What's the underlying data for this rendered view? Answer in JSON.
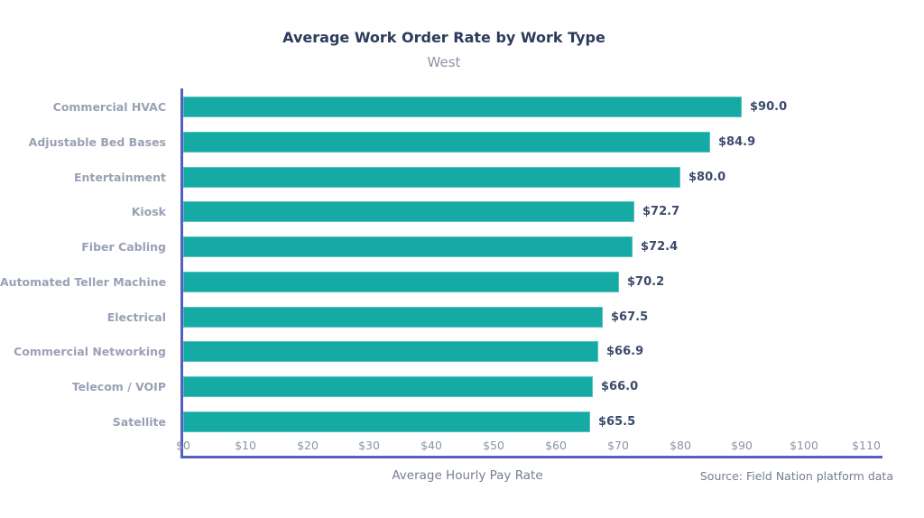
{
  "chart_data": {
    "type": "bar",
    "orientation": "horizontal",
    "title": "Average Work Order Rate by Work Type",
    "subtitle": "West",
    "categories": [
      "Commercial HVAC",
      "Adjustable Bed Bases",
      "Entertainment",
      "Kiosk",
      "Fiber Cabling",
      "Automated Teller Machine",
      "Electrical",
      "Commercial Networking",
      "Telecom / VOIP",
      "Satellite"
    ],
    "values": [
      90.0,
      84.9,
      80.0,
      72.7,
      72.4,
      70.2,
      67.5,
      66.9,
      66.0,
      65.5
    ],
    "value_labels": [
      "$90.0",
      "$84.9",
      "$80.0",
      "$72.7",
      "$72.4",
      "$70.2",
      "$67.5",
      "$66.9",
      "$66.0",
      "$65.5"
    ],
    "xlabel": "Average Hourly Pay Rate",
    "ylabel": "",
    "x_tick_labels": [
      "$0",
      "$10",
      "$20",
      "$30",
      "$40",
      "$50",
      "$60",
      "$70",
      "$80",
      "$90",
      "$100",
      "$110"
    ],
    "x_tick_values": [
      0,
      10,
      20,
      30,
      40,
      50,
      60,
      70,
      80,
      90,
      100,
      110
    ],
    "xlim": [
      0,
      110
    ],
    "grid": false,
    "legend": "none",
    "source": "Source: Field Nation platform data",
    "colors": {
      "bar": "#16aaa5",
      "axis_line": "#555fc2",
      "title": "#2c3a5c",
      "subtitle": "#8d93a8",
      "category_label": "#9aa1b5",
      "value_label": "#3c4a6b",
      "tick_label": "#8d93a8",
      "axis_title": "#767e96",
      "source_text": "#767e96",
      "background": "#ffffff"
    }
  }
}
